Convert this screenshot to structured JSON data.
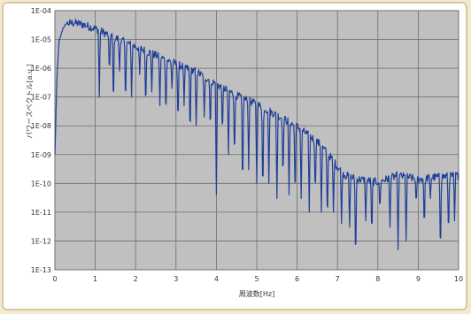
{
  "chart_data": {
    "type": "line",
    "xlabel": "周波数[Hz]",
    "ylabel": "パワースペクトル[a.u.]",
    "xlim": [
      0,
      10
    ],
    "ylim": [
      1e-13,
      0.0001
    ],
    "y_scale": "log",
    "grid": true,
    "x_ticks": [
      "0",
      "1",
      "2",
      "3",
      "4",
      "5",
      "6",
      "7",
      "8",
      "9",
      "10"
    ],
    "y_ticks": [
      "1E-13",
      "1E-12",
      "1E-11",
      "1E-10",
      "1E-09",
      "1E-08",
      "1E-07",
      "1E-06",
      "1E-05",
      "1E-04"
    ],
    "series": [
      {
        "color": "#1f3f99",
        "envelope_x": [
          0.0,
          0.05,
          0.1,
          0.2,
          0.3,
          0.5,
          0.7,
          1.0,
          1.5,
          2.0,
          2.5,
          3.0,
          3.5,
          4.0,
          4.5,
          5.0,
          5.5,
          6.0,
          6.5,
          6.8,
          7.0,
          7.2,
          7.5,
          8.0,
          8.5,
          9.0,
          9.5,
          10.0
        ],
        "envelope_y": [
          1e-09,
          5e-07,
          8e-06,
          2.5e-05,
          3.8e-05,
          4e-05,
          3.5e-05,
          2.5e-05,
          1.2e-05,
          6e-06,
          3e-06,
          1.5e-06,
          8e-07,
          3e-07,
          1.2e-07,
          6e-08,
          2.5e-08,
          1e-08,
          3e-09,
          1e-09,
          4e-10,
          2e-10,
          1.5e-10,
          1.2e-10,
          2e-10,
          1.5e-10,
          1.8e-10,
          2e-10
        ],
        "notch_x": [
          1.1,
          1.35,
          1.45,
          1.6,
          1.75,
          1.9,
          2.1,
          2.25,
          2.4,
          2.6,
          2.75,
          2.9,
          3.05,
          3.2,
          3.35,
          3.5,
          3.7,
          3.85,
          4.0,
          4.15,
          4.3,
          4.45,
          4.65,
          4.8,
          5.0,
          5.15,
          5.3,
          5.5,
          5.65,
          5.8,
          5.95,
          6.1,
          6.3,
          6.45,
          6.6,
          6.75,
          6.9,
          7.1,
          7.3,
          7.45,
          7.7,
          7.85,
          8.05,
          8.3,
          8.5,
          8.7,
          8.95,
          9.15,
          9.3,
          9.55,
          9.75,
          9.9
        ],
        "notch_y": [
          1e-07,
          5e-07,
          3e-08,
          8e-07,
          4e-08,
          1e-07,
          6e-07,
          3e-08,
          1.5e-07,
          5e-08,
          1.5e-08,
          2e-07,
          8e-09,
          5e-08,
          3e-09,
          1e-08,
          2e-08,
          5e-09,
          4e-11,
          4e-09,
          1e-09,
          5e-10,
          3e-11,
          3e-10,
          1e-10,
          2e-11,
          1e-10,
          3e-11,
          1e-10,
          4e-11,
          2e-11,
          3e-11,
          1e-11,
          3e-11,
          1e-11,
          3e-12,
          1e-11,
          4e-12,
          3e-12,
          1e-13,
          5e-12,
          1e-12,
          1e-11,
          3e-12,
          5e-13,
          1e-12,
          1.5e-11,
          2e-12,
          3e-11,
          2e-13,
          1e-12,
          5e-12
        ]
      }
    ]
  }
}
